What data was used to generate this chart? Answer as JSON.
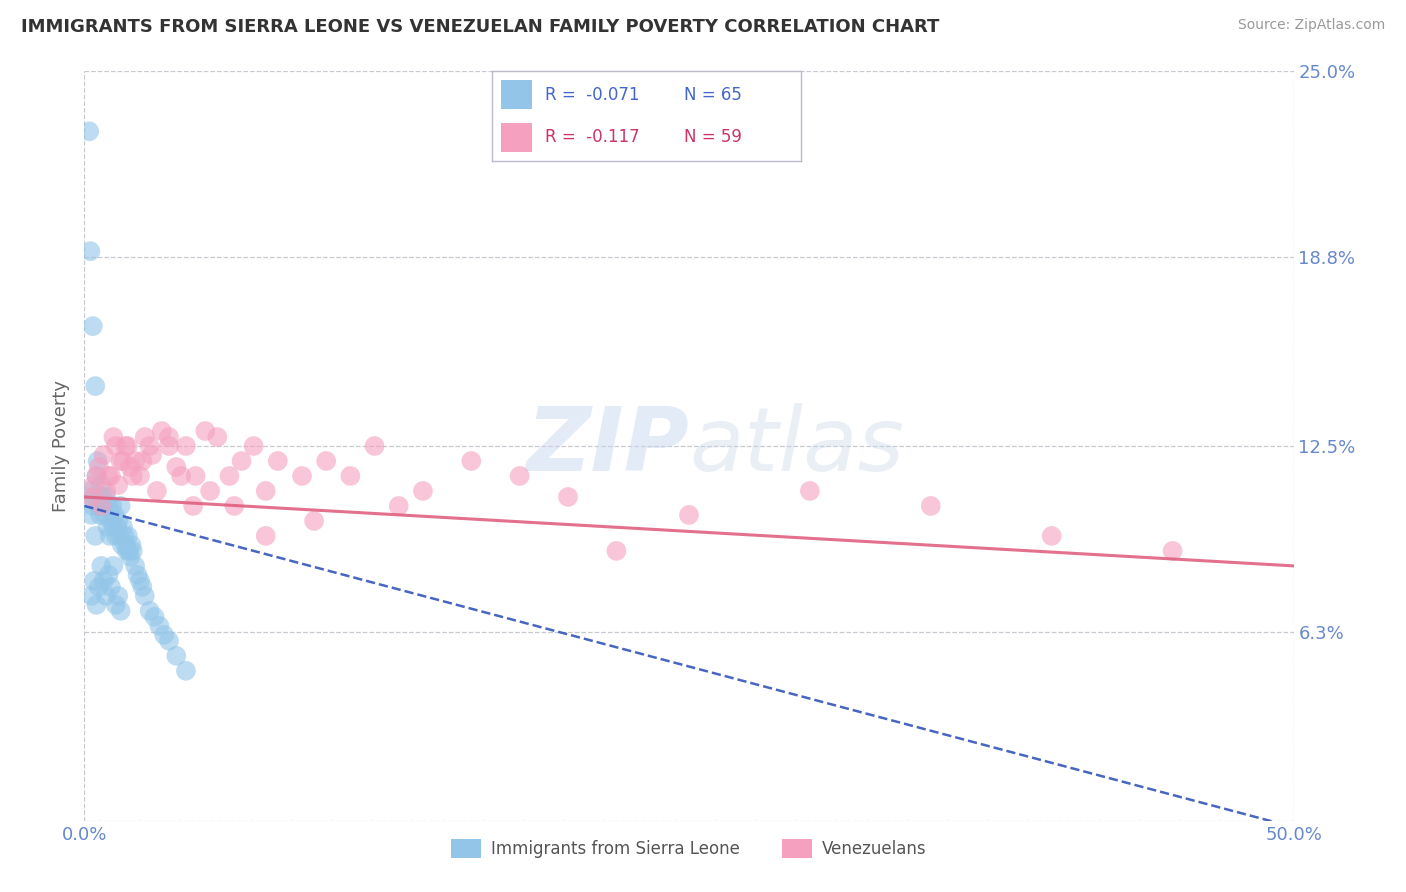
{
  "title": "IMMIGRANTS FROM SIERRA LEONE VS VENEZUELAN FAMILY POVERTY CORRELATION CHART",
  "source": "Source: ZipAtlas.com",
  "ylabel": "Family Poverty",
  "xlim": [
    0,
    50
  ],
  "ylim": [
    0,
    25
  ],
  "ytick_values": [
    0,
    6.3,
    12.5,
    18.8,
    25.0
  ],
  "ytick_labels": [
    "",
    "6.3%",
    "12.5%",
    "18.8%",
    "25.0%"
  ],
  "grid_color": "#c8c8d0",
  "background_color": "#ffffff",
  "legend_R1": "R =  -0.071",
  "legend_N1": "N = 65",
  "legend_R2": "R =  -0.117",
  "legend_N2": "N = 59",
  "label1": "Immigrants from Sierra Leone",
  "label2": "Venezuelans",
  "color1": "#92C5E8",
  "color2": "#F4A0BE",
  "trend1_color": "#3355BB",
  "trend2_color": "#E06080",
  "tick_label_color": "#6688CC",
  "sl_x": [
    0.2,
    0.25,
    0.3,
    0.35,
    0.4,
    0.45,
    0.5,
    0.55,
    0.6,
    0.65,
    0.7,
    0.75,
    0.8,
    0.85,
    0.9,
    0.95,
    1.0,
    1.05,
    1.1,
    1.15,
    1.2,
    1.25,
    1.3,
    1.35,
    1.4,
    1.45,
    1.5,
    1.55,
    1.6,
    1.65,
    1.7,
    1.75,
    1.8,
    1.85,
    1.9,
    1.95,
    2.0,
    2.1,
    2.2,
    2.3,
    2.4,
    2.5,
    2.7,
    2.9,
    3.1,
    3.3,
    3.5,
    3.8,
    4.2,
    0.3,
    0.4,
    0.5,
    0.6,
    0.7,
    0.8,
    0.9,
    1.0,
    1.1,
    1.2,
    1.3,
    1.4,
    1.5,
    0.25,
    0.35,
    0.45
  ],
  "sl_y": [
    23.0,
    11.0,
    10.2,
    10.5,
    10.8,
    9.5,
    11.5,
    12.0,
    10.5,
    10.2,
    11.2,
    10.8,
    10.5,
    10.2,
    10.8,
    9.8,
    10.5,
    9.5,
    10.0,
    10.5,
    9.8,
    10.2,
    9.5,
    9.8,
    10.0,
    9.5,
    10.5,
    9.2,
    9.8,
    9.5,
    9.2,
    9.0,
    9.5,
    9.0,
    8.8,
    9.2,
    9.0,
    8.5,
    8.2,
    8.0,
    7.8,
    7.5,
    7.0,
    6.8,
    6.5,
    6.2,
    6.0,
    5.5,
    5.0,
    7.5,
    8.0,
    7.2,
    7.8,
    8.5,
    8.0,
    7.5,
    8.2,
    7.8,
    8.5,
    7.2,
    7.5,
    7.0,
    19.0,
    16.5,
    14.5
  ],
  "ven_x": [
    0.3,
    0.5,
    0.7,
    0.9,
    1.1,
    1.3,
    1.5,
    1.7,
    1.9,
    2.1,
    2.3,
    2.5,
    2.8,
    3.2,
    3.5,
    3.8,
    4.2,
    4.6,
    5.0,
    5.5,
    6.0,
    6.5,
    7.0,
    7.5,
    8.0,
    9.0,
    10.0,
    11.0,
    12.0,
    14.0,
    16.0,
    18.0,
    20.0,
    25.0,
    30.0,
    35.0,
    40.0,
    45.0,
    0.4,
    0.6,
    0.8,
    1.0,
    1.2,
    1.4,
    1.6,
    1.8,
    2.0,
    2.4,
    2.7,
    3.0,
    3.5,
    4.0,
    4.5,
    5.2,
    6.2,
    7.5,
    9.5,
    13.0,
    22.0
  ],
  "ven_y": [
    10.8,
    11.5,
    10.5,
    11.0,
    11.5,
    12.5,
    12.0,
    12.5,
    11.8,
    12.0,
    11.5,
    12.8,
    12.2,
    13.0,
    12.5,
    11.8,
    12.5,
    11.5,
    13.0,
    12.8,
    11.5,
    12.0,
    12.5,
    11.0,
    12.0,
    11.5,
    12.0,
    11.5,
    12.5,
    11.0,
    12.0,
    11.5,
    10.8,
    10.2,
    11.0,
    10.5,
    9.5,
    9.0,
    11.2,
    11.8,
    12.2,
    11.5,
    12.8,
    11.2,
    12.0,
    12.5,
    11.5,
    12.0,
    12.5,
    11.0,
    12.8,
    11.5,
    10.5,
    11.0,
    10.5,
    9.5,
    10.0,
    10.5,
    9.0
  ],
  "sl_trend_x0": 0,
  "sl_trend_y0": 10.5,
  "sl_trend_x1": 14,
  "sl_trend_y1": 7.5,
  "ven_trend_x0": 0,
  "ven_trend_y0": 10.8,
  "ven_trend_x1": 50,
  "ven_trend_y1": 8.5
}
